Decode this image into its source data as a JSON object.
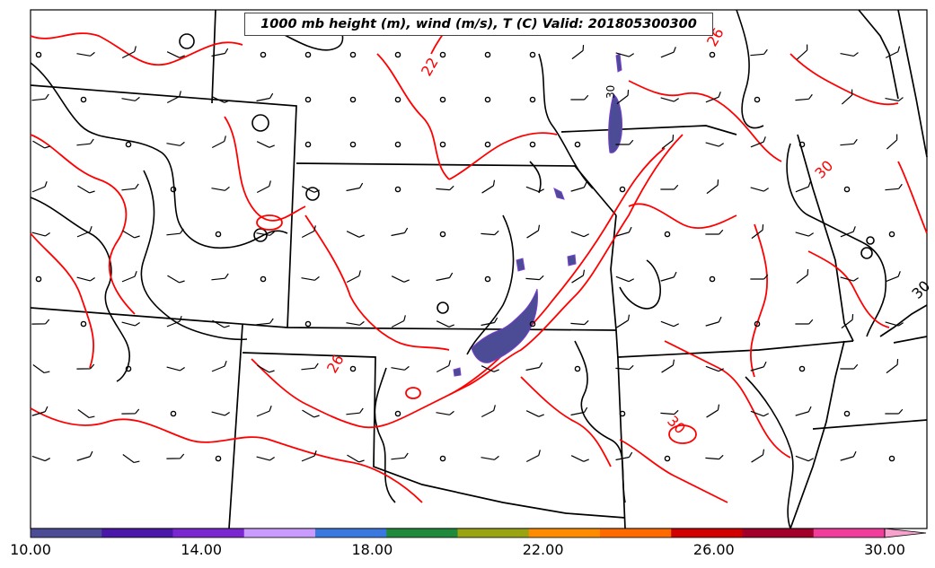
{
  "title": "1000 mb height (m), wind (m/s), T (C) Valid: 201805300300",
  "contour_labels": [
    "22",
    "26",
    "26",
    "30",
    "30",
    "30",
    "30"
  ],
  "colorbar": {
    "tick_labels": [
      "10.00",
      "14.00",
      "18.00",
      "22.00",
      "26.00",
      "30.00"
    ],
    "colors": [
      "#4b4b96",
      "#4a18a8",
      "#7b27d0",
      "#c99bff",
      "#3a78e0",
      "#1f8a3c",
      "#9aa312",
      "#ff8c00",
      "#ff6a00",
      "#d10000",
      "#a0002a",
      "#f03c9b",
      "#f7a1cc"
    ]
  },
  "styles": {
    "temperature_contour": "#ff0000",
    "height_contour": "#000000",
    "boundary": "#000000",
    "precip_shading": "#4b4b96"
  }
}
